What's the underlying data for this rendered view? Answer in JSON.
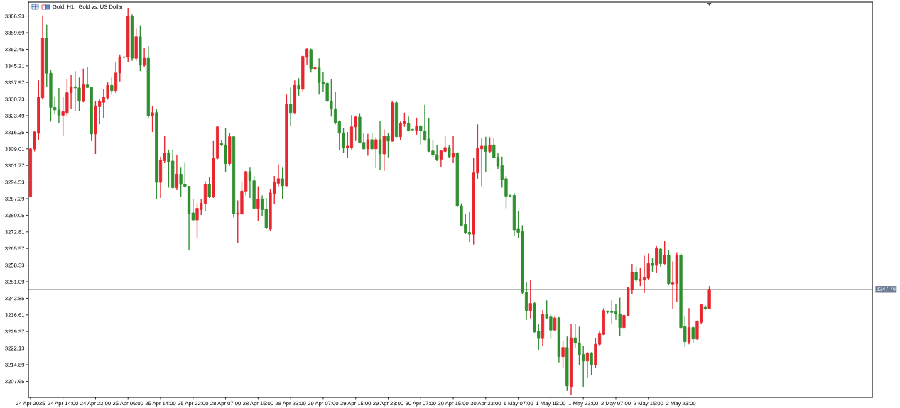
{
  "chart_data": {
    "type": "candlestick",
    "title": "Gold, H1:  Gold vs. US Dollar",
    "categories": [
      "24 Apr 2025",
      null,
      null,
      null,
      null,
      null,
      null,
      null,
      "24 Apr 14:00",
      null,
      null,
      null,
      null,
      null,
      null,
      null,
      "24 Apr 22:00",
      null,
      null,
      null,
      null,
      null,
      null,
      null,
      "25 Apr 06:00",
      null,
      null,
      null,
      null,
      null,
      null,
      null,
      "25 Apr 14:00",
      null,
      null,
      null,
      null,
      null,
      null,
      null,
      "25 Apr 22:00",
      null,
      null,
      null,
      null,
      null,
      null,
      null,
      "28 Apr 07:00",
      null,
      null,
      null,
      null,
      null,
      null,
      null,
      "28 Apr 15:00",
      null,
      null,
      null,
      null,
      null,
      null,
      null,
      "28 Apr 23:00",
      null,
      null,
      null,
      null,
      null,
      null,
      null,
      "29 Apr 07:00",
      null,
      null,
      null,
      null,
      null,
      null,
      null,
      "29 Apr 15:00",
      null,
      null,
      null,
      null,
      null,
      null,
      null,
      "29 Apr 23:00",
      null,
      null,
      null,
      null,
      null,
      null,
      null,
      "30 Apr 07:00",
      null,
      null,
      null,
      null,
      null,
      null,
      null,
      "30 Apr 15:00",
      null,
      null,
      null,
      null,
      null,
      null,
      null,
      "30 Apr 23:00",
      null,
      null,
      null,
      null,
      null,
      null,
      null,
      "1 May 07:00",
      null,
      null,
      null,
      null,
      null,
      null,
      null,
      "1 May 15:00",
      null,
      null,
      null,
      null,
      null,
      null,
      null,
      "1 May 23:00",
      null,
      null,
      null,
      null,
      null,
      null,
      null,
      "2 May 07:00",
      null,
      null,
      null,
      null,
      null,
      null,
      null,
      "2 May 15:00",
      null,
      null,
      null,
      null,
      null,
      null,
      null,
      "2 May 23:00",
      null,
      null,
      null,
      null,
      null,
      null,
      null
    ],
    "ohlc": [
      [
        3288.1,
        3309.6,
        3287.9,
        3309.0
      ],
      [
        3309.0,
        3316.9,
        3307.9,
        3316.4
      ],
      [
        3315.8,
        3338.9,
        3313.0,
        3331.6
      ],
      [
        3331.3,
        3367.2,
        3330.5,
        3357.2
      ],
      [
        3357.2,
        3363.2,
        3336.1,
        3342.0
      ],
      [
        3342.0,
        3343.5,
        3320.9,
        3327.1
      ],
      [
        3327.1,
        3331.6,
        3324.3,
        3326.0
      ],
      [
        3326.0,
        3335.6,
        3320.3,
        3323.7
      ],
      [
        3323.7,
        3331.6,
        3314.7,
        3325.2
      ],
      [
        3324.8,
        3339.5,
        3323.1,
        3333.5
      ],
      [
        3333.5,
        3341.2,
        3326.5,
        3336.1
      ],
      [
        3336.1,
        3342.9,
        3325.4,
        3335.6
      ],
      [
        3335.6,
        3340.1,
        3325.4,
        3329.9
      ],
      [
        3329.7,
        3344.0,
        3329.3,
        3336.9
      ],
      [
        3336.9,
        3344.6,
        3335.6,
        3335.8
      ],
      [
        3335.8,
        3336.1,
        3312.4,
        3315.5
      ],
      [
        3315.5,
        3329.9,
        3306.8,
        3327.7
      ],
      [
        3327.4,
        3330.5,
        3319.7,
        3329.7
      ],
      [
        3329.3,
        3335.0,
        3322.6,
        3331.6
      ],
      [
        3331.3,
        3338.0,
        3330.5,
        3336.7
      ],
      [
        3336.7,
        3340.1,
        3332.7,
        3334.4
      ],
      [
        3334.4,
        3346.8,
        3333.3,
        3342.1
      ],
      [
        3342.1,
        3350.2,
        3338.4,
        3349.1
      ],
      [
        3349.1,
        3349.3,
        3348.5,
        3348.9
      ],
      [
        3348.9,
        3370.5,
        3346.8,
        3366.9
      ],
      [
        3366.9,
        3367.7,
        3347.4,
        3348.5
      ],
      [
        3348.5,
        3361.5,
        3347.4,
        3357.9
      ],
      [
        3357.9,
        3362.9,
        3342.9,
        3345.5
      ],
      [
        3345.5,
        3353.0,
        3344.6,
        3348.5
      ],
      [
        3348.5,
        3353.8,
        3322.6,
        3323.5
      ],
      [
        3323.5,
        3327.7,
        3316.4,
        3324.8
      ],
      [
        3324.8,
        3326.5,
        3287.0,
        3294.4
      ],
      [
        3294.4,
        3305.6,
        3287.6,
        3304.2
      ],
      [
        3303.9,
        3314.7,
        3302.8,
        3307.1
      ],
      [
        3307.3,
        3308.7,
        3292.1,
        3303.4
      ],
      [
        3303.7,
        3308.7,
        3291.8,
        3292.1
      ],
      [
        3292.1,
        3306.4,
        3291.0,
        3298.0
      ],
      [
        3298.0,
        3300.8,
        3288.1,
        3293.5
      ],
      [
        3293.5,
        3303.0,
        3292.1,
        3292.7
      ],
      [
        3292.7,
        3292.9,
        3265.0,
        3280.8
      ],
      [
        3281.1,
        3287.0,
        3277.4,
        3278.0
      ],
      [
        3278.0,
        3285.3,
        3270.1,
        3283.1
      ],
      [
        3282.5,
        3287.2,
        3280.2,
        3285.3
      ],
      [
        3285.3,
        3294.9,
        3281.9,
        3293.6
      ],
      [
        3293.6,
        3296.6,
        3287.6,
        3288.1
      ],
      [
        3288.1,
        3312.4,
        3287.6,
        3304.9
      ],
      [
        3304.9,
        3318.8,
        3304.5,
        3318.6
      ],
      [
        3311.3,
        3313.0,
        3310.2,
        3310.7
      ],
      [
        3310.7,
        3318.1,
        3298.9,
        3302.6
      ],
      [
        3302.6,
        3315.8,
        3301.7,
        3314.3
      ],
      [
        3314.3,
        3314.7,
        3279.1,
        3280.8
      ],
      [
        3280.5,
        3286.5,
        3268.1,
        3281.1
      ],
      [
        3280.8,
        3294.9,
        3280.2,
        3290.6
      ],
      [
        3290.6,
        3299.4,
        3288.7,
        3299.1
      ],
      [
        3299.1,
        3300.8,
        3287.6,
        3295.1
      ],
      [
        3295.1,
        3297.2,
        3282.5,
        3283.1
      ],
      [
        3283.1,
        3292.7,
        3277.4,
        3287.2
      ],
      [
        3287.2,
        3288.7,
        3279.7,
        3282.5
      ],
      [
        3282.7,
        3287.6,
        3274.0,
        3274.4
      ],
      [
        3274.0,
        3291.5,
        3273.2,
        3289.8
      ],
      [
        3289.5,
        3297.2,
        3284.8,
        3294.4
      ],
      [
        3294.0,
        3302.3,
        3292.7,
        3296.0
      ],
      [
        3296.0,
        3300.8,
        3287.0,
        3292.9
      ],
      [
        3292.9,
        3332.7,
        3292.7,
        3328.6
      ],
      [
        3328.6,
        3335.8,
        3319.2,
        3324.8
      ],
      [
        3324.8,
        3338.9,
        3324.5,
        3336.7
      ],
      [
        3336.7,
        3339.8,
        3332.2,
        3335.0
      ],
      [
        3335.0,
        3350.0,
        3333.9,
        3349.3
      ],
      [
        3348.9,
        3353.0,
        3345.7,
        3352.5
      ],
      [
        3352.3,
        3352.7,
        3342.3,
        3344.0
      ],
      [
        3344.0,
        3344.8,
        3343.7,
        3344.4
      ],
      [
        3344.4,
        3348.5,
        3332.7,
        3338.0
      ],
      [
        3338.0,
        3342.6,
        3333.9,
        3337.2
      ],
      [
        3337.6,
        3338.0,
        3329.3,
        3329.9
      ],
      [
        3329.9,
        3339.5,
        3323.1,
        3326.5
      ],
      [
        3326.5,
        3333.9,
        3319.7,
        3320.3
      ],
      [
        3320.9,
        3321.4,
        3308.5,
        3315.8
      ],
      [
        3315.8,
        3318.1,
        3307.3,
        3309.6
      ],
      [
        3309.4,
        3316.4,
        3305.1,
        3310.2
      ],
      [
        3309.6,
        3323.7,
        3308.7,
        3318.6
      ],
      [
        3318.6,
        3323.4,
        3312.4,
        3322.9
      ],
      [
        3322.9,
        3324.6,
        3311.6,
        3311.8
      ],
      [
        3311.8,
        3315.8,
        3308.5,
        3309.0
      ],
      [
        3309.0,
        3315.5,
        3306.0,
        3313.0
      ],
      [
        3313.0,
        3315.8,
        3308.5,
        3309.0
      ],
      [
        3309.0,
        3314.1,
        3300.6,
        3313.0
      ],
      [
        3313.0,
        3321.3,
        3299.7,
        3306.8
      ],
      [
        3306.8,
        3317.5,
        3299.4,
        3314.7
      ],
      [
        3314.7,
        3315.8,
        3305.3,
        3312.4
      ],
      [
        3312.4,
        3329.9,
        3312.1,
        3329.1
      ],
      [
        3329.1,
        3329.7,
        3314.1,
        3314.3
      ],
      [
        3314.3,
        3320.9,
        3313.0,
        3320.0
      ],
      [
        3320.0,
        3324.8,
        3318.6,
        3320.9
      ],
      [
        3320.3,
        3323.1,
        3316.6,
        3316.9
      ],
      [
        3317.5,
        3317.7,
        3316.9,
        3317.3
      ],
      [
        3316.9,
        3322.6,
        3315.2,
        3319.0
      ],
      [
        3319.0,
        3319.5,
        3310.9,
        3316.9
      ],
      [
        3316.9,
        3328.2,
        3312.4,
        3313.0
      ],
      [
        3313.3,
        3322.6,
        3307.6,
        3307.9
      ],
      [
        3308.1,
        3313.0,
        3305.6,
        3306.4
      ],
      [
        3306.5,
        3310.7,
        3303.7,
        3304.3
      ],
      [
        3304.5,
        3308.5,
        3301.1,
        3308.1
      ],
      [
        3307.9,
        3314.7,
        3307.3,
        3309.6
      ],
      [
        3309.6,
        3310.7,
        3305.1,
        3305.6
      ],
      [
        3305.6,
        3314.7,
        3302.8,
        3307.1
      ],
      [
        3307.1,
        3307.6,
        3283.6,
        3284.2
      ],
      [
        3284.2,
        3285.3,
        3275.2,
        3275.7
      ],
      [
        3276.0,
        3280.8,
        3271.8,
        3272.3
      ],
      [
        3272.6,
        3281.4,
        3268.4,
        3271.8
      ],
      [
        3271.8,
        3304.9,
        3267.3,
        3298.5
      ],
      [
        3298.5,
        3319.7,
        3296.0,
        3309.2
      ],
      [
        3309.0,
        3313.5,
        3292.7,
        3310.2
      ],
      [
        3310.2,
        3314.3,
        3298.9,
        3307.9
      ],
      [
        3307.9,
        3314.1,
        3307.3,
        3310.7
      ],
      [
        3310.7,
        3313.5,
        3304.9,
        3305.1
      ],
      [
        3305.4,
        3307.3,
        3300.3,
        3301.5
      ],
      [
        3301.7,
        3305.6,
        3292.1,
        3295.5
      ],
      [
        3296.0,
        3297.2,
        3283.1,
        3288.4
      ],
      [
        3288.7,
        3289.0,
        3288.1,
        3288.4
      ],
      [
        3288.7,
        3289.8,
        3271.2,
        3273.7
      ],
      [
        3274.0,
        3281.9,
        3270.3,
        3272.6
      ],
      [
        3272.9,
        3275.7,
        3245.8,
        3246.4
      ],
      [
        3246.4,
        3251.1,
        3234.5,
        3238.5
      ],
      [
        3238.5,
        3251.8,
        3235.1,
        3241.6
      ],
      [
        3241.6,
        3242.4,
        3228.9,
        3229.2
      ],
      [
        3229.4,
        3232.8,
        3221.5,
        3226.3
      ],
      [
        3226.3,
        3238.7,
        3223.2,
        3236.8
      ],
      [
        3236.8,
        3243.0,
        3234.9,
        3235.3
      ],
      [
        3235.7,
        3236.8,
        3226.1,
        3230.0
      ],
      [
        3230.0,
        3236.2,
        3229.4,
        3235.3
      ],
      [
        3235.3,
        3235.7,
        3215.9,
        3218.4
      ],
      [
        3218.4,
        3225.2,
        3213.6,
        3222.4
      ],
      [
        3222.4,
        3227.2,
        3203.5,
        3205.7
      ],
      [
        3205.2,
        3232.8,
        3201.8,
        3226.6
      ],
      [
        3226.6,
        3232.8,
        3222.1,
        3224.4
      ],
      [
        3224.4,
        3231.5,
        3214.8,
        3219.3
      ],
      [
        3219.3,
        3223.2,
        3205.2,
        3216.5
      ],
      [
        3216.5,
        3220.4,
        3209.1,
        3219.9
      ],
      [
        3219.9,
        3220.4,
        3210.3,
        3214.8
      ],
      [
        3214.8,
        3226.6,
        3213.6,
        3223.8
      ],
      [
        3223.8,
        3229.4,
        3223.2,
        3228.3
      ],
      [
        3228.1,
        3239.6,
        3227.8,
        3238.5
      ],
      [
        3238.1,
        3238.5,
        3237.3,
        3237.9
      ],
      [
        3238.1,
        3243.0,
        3232.8,
        3237.7
      ],
      [
        3237.9,
        3241.3,
        3234.5,
        3237.3
      ],
      [
        3237.1,
        3244.1,
        3227.4,
        3231.1
      ],
      [
        3231.1,
        3236.8,
        3230.8,
        3236.4
      ],
      [
        3236.2,
        3248.9,
        3236.0,
        3248.4
      ],
      [
        3247.7,
        3258.8,
        3245.8,
        3255.1
      ],
      [
        3255.1,
        3257.7,
        3251.1,
        3251.8
      ],
      [
        3251.5,
        3257.1,
        3249.2,
        3252.2
      ],
      [
        3251.8,
        3262.4,
        3246.2,
        3252.9
      ],
      [
        3252.6,
        3263.3,
        3252.0,
        3259.0
      ],
      [
        3259.0,
        3261.6,
        3255.4,
        3258.2
      ],
      [
        3258.2,
        3266.7,
        3254.8,
        3265.6
      ],
      [
        3265.3,
        3265.6,
        3257.7,
        3259.0
      ],
      [
        3259.0,
        3269.0,
        3258.6,
        3262.7
      ],
      [
        3262.7,
        3264.7,
        3249.8,
        3250.3
      ],
      [
        3250.1,
        3259.9,
        3239.0,
        3250.6
      ],
      [
        3250.3,
        3263.9,
        3242.4,
        3262.7
      ],
      [
        3262.7,
        3263.5,
        3230.6,
        3231.1
      ],
      [
        3231.5,
        3236.2,
        3222.7,
        3224.9
      ],
      [
        3224.7,
        3239.6,
        3223.8,
        3231.1
      ],
      [
        3231.1,
        3231.9,
        3224.4,
        3226.1
      ],
      [
        3226.1,
        3234.2,
        3225.8,
        3233.7
      ],
      [
        3233.4,
        3241.3,
        3232.8,
        3241.0
      ],
      [
        3240.2,
        3240.7,
        3238.7,
        3239.4
      ],
      [
        3239.4,
        3249.2,
        3239.0,
        3247.76
      ]
    ],
    "colors": [
      "#e8262e",
      "#e8262e",
      "#e8262e",
      "#e8262e",
      "#2f8f2f",
      "#2f8f2f",
      "#2f8f2f",
      "#2f8f2f",
      "#e8262e",
      "#e8262e",
      "#e8262e",
      "#2f8f2f",
      "#2f8f2f",
      "#e8262e",
      "#2f8f2f",
      "#2f8f2f",
      "#e8262e",
      "#e8262e",
      "#e8262e",
      "#e8262e",
      "#2f8f2f",
      "#e8262e",
      "#e8262e",
      "#2f8f2f",
      "#e8262e",
      "#2f8f2f",
      "#e8262e",
      "#2f8f2f",
      "#e8262e",
      "#2f8f2f",
      "#e8262e",
      "#2f8f2f",
      "#e8262e",
      "#e8262e",
      "#2f8f2f",
      "#2f8f2f",
      "#e8262e",
      "#2f8f2f",
      "#2f8f2f",
      "#2f8f2f",
      "#2f8f2f",
      "#e8262e",
      "#e8262e",
      "#e8262e",
      "#2f8f2f",
      "#e8262e",
      "#e8262e",
      "#2f8f2f",
      "#2f8f2f",
      "#e8262e",
      "#2f8f2f",
      "#e8262e",
      "#e8262e",
      "#e8262e",
      "#2f8f2f",
      "#2f8f2f",
      "#e8262e",
      "#2f8f2f",
      "#2f8f2f",
      "#e8262e",
      "#e8262e",
      "#e8262e",
      "#2f8f2f",
      "#e8262e",
      "#2f8f2f",
      "#e8262e",
      "#2f8f2f",
      "#e8262e",
      "#e8262e",
      "#2f8f2f",
      "#e8262e",
      "#2f8f2f",
      "#2f8f2f",
      "#2f8f2f",
      "#2f8f2f",
      "#2f8f2f",
      "#2f8f2f",
      "#2f8f2f",
      "#e8262e",
      "#e8262e",
      "#e8262e",
      "#2f8f2f",
      "#2f8f2f",
      "#e8262e",
      "#2f8f2f",
      "#e8262e",
      "#2f8f2f",
      "#e8262e",
      "#2f8f2f",
      "#e8262e",
      "#2f8f2f",
      "#e8262e",
      "#e8262e",
      "#2f8f2f",
      "#2f8f2f",
      "#e8262e",
      "#2f8f2f",
      "#2f8f2f",
      "#2f8f2f",
      "#2f8f2f",
      "#2f8f2f",
      "#e8262e",
      "#e8262e",
      "#2f8f2f",
      "#e8262e",
      "#2f8f2f",
      "#2f8f2f",
      "#2f8f2f",
      "#2f8f2f",
      "#e8262e",
      "#e8262e",
      "#e8262e",
      "#2f8f2f",
      "#e8262e",
      "#2f8f2f",
      "#2f8f2f",
      "#2f8f2f",
      "#2f8f2f",
      "#2f8f2f",
      "#2f8f2f",
      "#2f8f2f",
      "#2f8f2f",
      "#2f8f2f",
      "#e8262e",
      "#2f8f2f",
      "#2f8f2f",
      "#e8262e",
      "#2f8f2f",
      "#2f8f2f",
      "#e8262e",
      "#2f8f2f",
      "#e8262e",
      "#2f8f2f",
      "#e8262e",
      "#2f8f2f",
      "#2f8f2f",
      "#2f8f2f",
      "#e8262e",
      "#2f8f2f",
      "#e8262e",
      "#e8262e",
      "#e8262e",
      "#2f8f2f",
      "#2f8f2f",
      "#2f8f2f",
      "#2f8f2f",
      "#e8262e",
      "#e8262e",
      "#e8262e",
      "#2f8f2f",
      "#e8262e",
      "#e8262e",
      "#e8262e",
      "#2f8f2f",
      "#e8262e",
      "#2f8f2f",
      "#e8262e",
      "#2f8f2f",
      "#e8262e",
      "#e8262e",
      "#2f8f2f",
      "#2f8f2f",
      "#e8262e",
      "#2f8f2f",
      "#e8262e",
      "#e8262e",
      "#2f8f2f",
      "#e8262e"
    ],
    "ylim": [
      3200.66,
      3373.0
    ],
    "yticks": [
      3207.65,
      3214.89,
      3222.13,
      3229.37,
      3236.61,
      3243.85,
      3251.09,
      3258.33,
      3265.57,
      3272.81,
      3280.05,
      3287.29,
      3294.53,
      3301.77,
      3309.01,
      3316.25,
      3323.49,
      3330.73,
      3337.97,
      3345.21,
      3352.45,
      3359.69,
      3366.93
    ],
    "ref_lines": [
      {
        "axis": "y",
        "value": 3247.76,
        "label": "3247.76",
        "color": "#a0a0a0"
      }
    ]
  }
}
